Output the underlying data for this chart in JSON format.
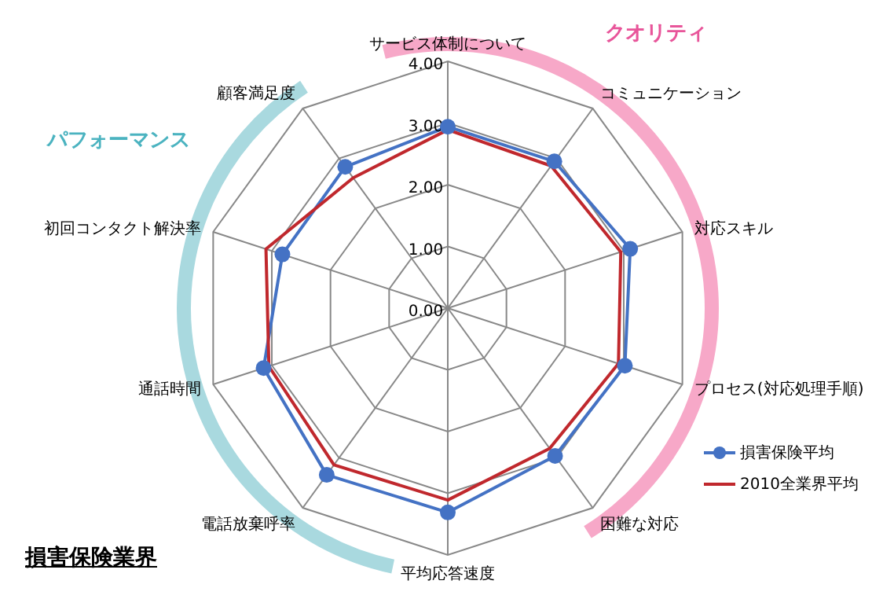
{
  "chart_data": {
    "type": "radar",
    "title": "損害保険業界",
    "annotations": [
      "クオリティ",
      "パフォーマンス"
    ],
    "categories": [
      "サービス体制について",
      "コミュニケーション",
      "対応スキル",
      "プロセス(対応処理手順)",
      "困難な対応",
      "平均応答速度",
      "電話放棄呼率",
      "通話時間",
      "初回コンタクト解決率",
      "顧客満足度"
    ],
    "series": [
      {
        "name": "損害保険平均",
        "color": "#4472c4",
        "marker": "circle",
        "values": [
          2.94,
          2.94,
          3.11,
          3.02,
          2.96,
          3.31,
          3.34,
          3.14,
          2.82,
          2.83
        ]
      },
      {
        "name": "2010全業界平均",
        "color": "#c0282d",
        "marker": "none",
        "values": [
          2.89,
          2.85,
          2.95,
          2.91,
          2.81,
          3.11,
          3.14,
          3.05,
          3.1,
          2.61
        ]
      }
    ],
    "ylim": [
      0,
      4
    ],
    "yticks": [
      {
        "value": 0,
        "label": "0.00"
      },
      {
        "value": 1,
        "label": "1.00"
      },
      {
        "value": 2,
        "label": "2.00"
      },
      {
        "value": 3,
        "label": "3.00"
      },
      {
        "value": 4,
        "label": "4.00"
      }
    ],
    "grid": true,
    "legend": "bottom right"
  }
}
